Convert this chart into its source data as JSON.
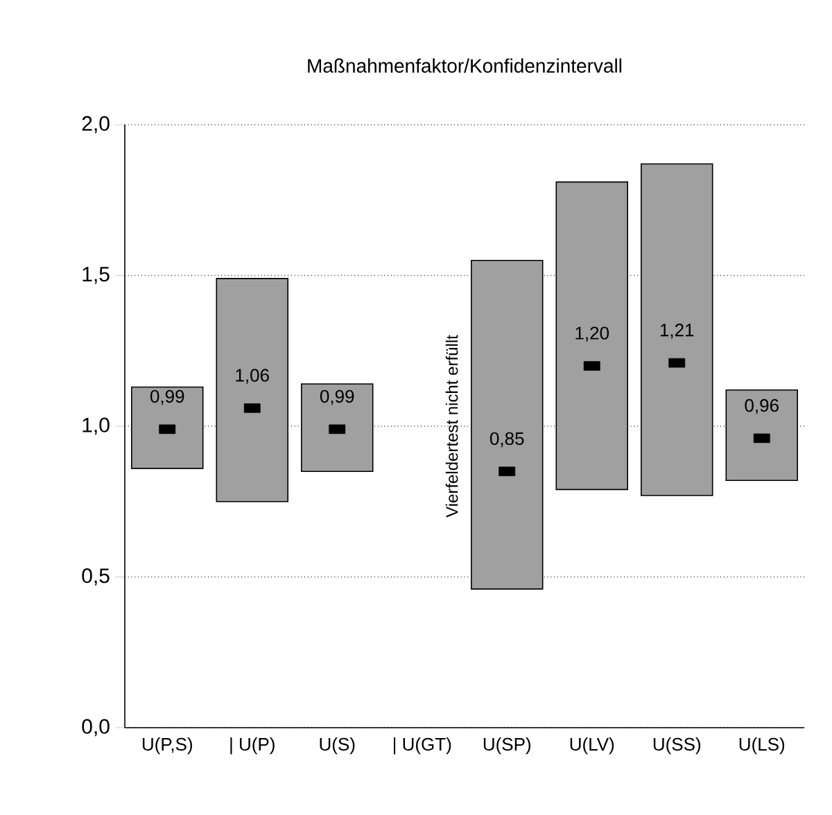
{
  "chart_data": {
    "type": "bar",
    "title": "Maßnahmenfaktor/Konfidenzintervall",
    "categories": [
      "U(P,S)",
      "| U(P)",
      "U(S)",
      "| U(GT)",
      "U(SP)",
      "U(LV)",
      "U(SS)",
      "U(LS)"
    ],
    "series": [
      {
        "color": "#a0a0a0",
        "base": [
          0.86,
          0.75,
          0.85,
          null,
          0.46,
          0.79,
          0.77,
          0.82
        ],
        "values": [
          0.27,
          0.74,
          0.29,
          null,
          1.09,
          1.02,
          1.1,
          0.3
        ]
      },
      {
        "type": "scatter",
        "marker": "square",
        "color": "#000000",
        "values": [
          0.99,
          1.06,
          0.99,
          null,
          0.85,
          1.2,
          1.21,
          0.96
        ],
        "value_labels": [
          "0,99",
          "1,06",
          "0,99",
          null,
          "0,85",
          "1,20",
          "1,21",
          "0,96"
        ]
      }
    ],
    "ylim": [
      0,
      2
    ],
    "yticks": [
      {
        "value": 0,
        "label": "0,0"
      },
      {
        "value": 0.5,
        "label": "0,5"
      },
      {
        "value": 1,
        "label": "1,0"
      },
      {
        "value": 1.5,
        "label": "1,5"
      },
      {
        "value": 2,
        "label": "2,0"
      }
    ],
    "grid": "y",
    "annotations": [
      "Vierfeldertest nicht erfüllt"
    ]
  }
}
